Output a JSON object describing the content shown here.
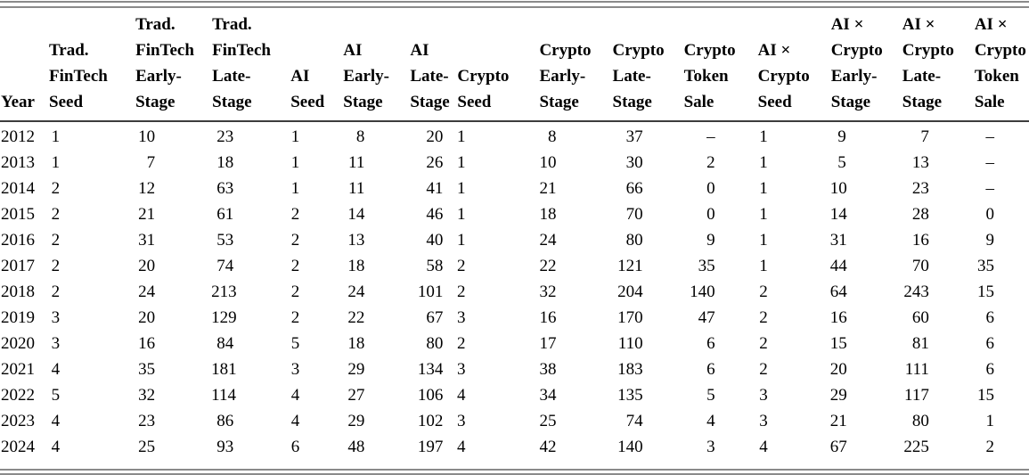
{
  "colors": {
    "double_rule": "#8a8a8a",
    "header_rule": "#3d3d3d",
    "text": "#000000",
    "background": "#ffffff"
  },
  "missing_value_symbol": "–",
  "table": {
    "columns": [
      {
        "id": "year",
        "label_lines": [
          "Year"
        ]
      },
      {
        "id": "trad-fintech-seed",
        "label_lines": [
          "Trad.",
          "FinTech",
          "Seed"
        ]
      },
      {
        "id": "trad-fintech-early",
        "label_lines": [
          "Trad.",
          "FinTech",
          "Early-",
          "Stage"
        ]
      },
      {
        "id": "trad-fintech-late",
        "label_lines": [
          "Trad.",
          "FinTech",
          "Late-",
          "Stage"
        ]
      },
      {
        "id": "ai-seed",
        "label_lines": [
          "AI",
          "Seed"
        ]
      },
      {
        "id": "ai-early",
        "label_lines": [
          "AI",
          "Early-",
          "Stage"
        ]
      },
      {
        "id": "ai-late",
        "label_lines": [
          "AI",
          "Late-",
          "Stage"
        ]
      },
      {
        "id": "crypto-seed",
        "label_lines": [
          "Crypto",
          "Seed"
        ]
      },
      {
        "id": "crypto-early",
        "label_lines": [
          "Crypto",
          "Early-",
          "Stage"
        ]
      },
      {
        "id": "crypto-late",
        "label_lines": [
          "Crypto",
          "Late-",
          "Stage"
        ]
      },
      {
        "id": "crypto-token-sale",
        "label_lines": [
          "Crypto",
          "Token",
          "Sale"
        ]
      },
      {
        "id": "ai-crypto-seed",
        "label_lines": [
          "AI ×",
          "Crypto",
          "Seed"
        ]
      },
      {
        "id": "ai-crypto-early",
        "label_lines": [
          "AI ×",
          "Crypto",
          "Early-",
          "Stage"
        ]
      },
      {
        "id": "ai-crypto-late",
        "label_lines": [
          "AI ×",
          "Crypto",
          "Late-",
          "Stage"
        ]
      },
      {
        "id": "ai-crypto-token-sale",
        "label_lines": [
          "AI ×",
          "Crypto",
          "Token",
          "Sale"
        ]
      }
    ],
    "rows": [
      {
        "year": "2012",
        "values": [
          "1",
          "10",
          "23",
          "1",
          "8",
          "20",
          "1",
          "8",
          "37",
          "–",
          "1",
          "9",
          "7",
          "–"
        ]
      },
      {
        "year": "2013",
        "values": [
          "1",
          "7",
          "18",
          "1",
          "11",
          "26",
          "1",
          "10",
          "30",
          "2",
          "1",
          "5",
          "13",
          "–"
        ]
      },
      {
        "year": "2014",
        "values": [
          "2",
          "12",
          "63",
          "1",
          "11",
          "41",
          "1",
          "21",
          "66",
          "0",
          "1",
          "10",
          "23",
          "–"
        ]
      },
      {
        "year": "2015",
        "values": [
          "2",
          "21",
          "61",
          "2",
          "14",
          "46",
          "1",
          "18",
          "70",
          "0",
          "1",
          "14",
          "28",
          "0"
        ]
      },
      {
        "year": "2016",
        "values": [
          "2",
          "31",
          "53",
          "2",
          "13",
          "40",
          "1",
          "24",
          "80",
          "9",
          "1",
          "31",
          "16",
          "9"
        ]
      },
      {
        "year": "2017",
        "values": [
          "2",
          "20",
          "74",
          "2",
          "18",
          "58",
          "2",
          "22",
          "121",
          "35",
          "1",
          "44",
          "70",
          "35"
        ]
      },
      {
        "year": "2018",
        "values": [
          "2",
          "24",
          "213",
          "2",
          "24",
          "101",
          "2",
          "32",
          "204",
          "140",
          "2",
          "64",
          "243",
          "15"
        ]
      },
      {
        "year": "2019",
        "values": [
          "3",
          "20",
          "129",
          "2",
          "22",
          "67",
          "3",
          "16",
          "170",
          "47",
          "2",
          "16",
          "60",
          "6"
        ]
      },
      {
        "year": "2020",
        "values": [
          "3",
          "16",
          "84",
          "5",
          "18",
          "80",
          "2",
          "17",
          "110",
          "6",
          "2",
          "15",
          "81",
          "6"
        ]
      },
      {
        "year": "2021",
        "values": [
          "4",
          "35",
          "181",
          "3",
          "29",
          "134",
          "3",
          "38",
          "183",
          "6",
          "2",
          "20",
          "111",
          "6"
        ]
      },
      {
        "year": "2022",
        "values": [
          "5",
          "32",
          "114",
          "4",
          "27",
          "106",
          "4",
          "34",
          "135",
          "5",
          "3",
          "29",
          "117",
          "15"
        ]
      },
      {
        "year": "2023",
        "values": [
          "4",
          "23",
          "86",
          "4",
          "29",
          "102",
          "3",
          "25",
          "74",
          "4",
          "3",
          "21",
          "80",
          "1"
        ]
      },
      {
        "year": "2024",
        "values": [
          "4",
          "25",
          "93",
          "6",
          "48",
          "197",
          "4",
          "42",
          "140",
          "3",
          "4",
          "67",
          "225",
          "2"
        ]
      }
    ]
  }
}
